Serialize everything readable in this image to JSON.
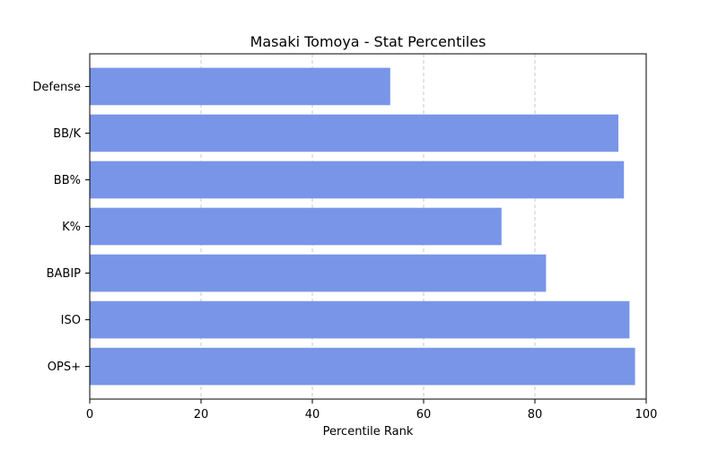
{
  "chart_data": {
    "type": "bar",
    "orientation": "horizontal",
    "title": "Masaki Tomoya - Stat Percentiles",
    "xlabel": "Percentile Rank",
    "ylabel": "",
    "categories": [
      "OPS+",
      "ISO",
      "BABIP",
      "K%",
      "BB%",
      "BB/K",
      "Defense"
    ],
    "values": [
      98,
      97,
      82,
      74,
      96,
      95,
      54
    ],
    "xlim": [
      0,
      100
    ],
    "xticks": [
      0,
      20,
      40,
      60,
      80,
      100
    ],
    "grid": "x-axis dashed",
    "bar_color": "#7895e8"
  }
}
